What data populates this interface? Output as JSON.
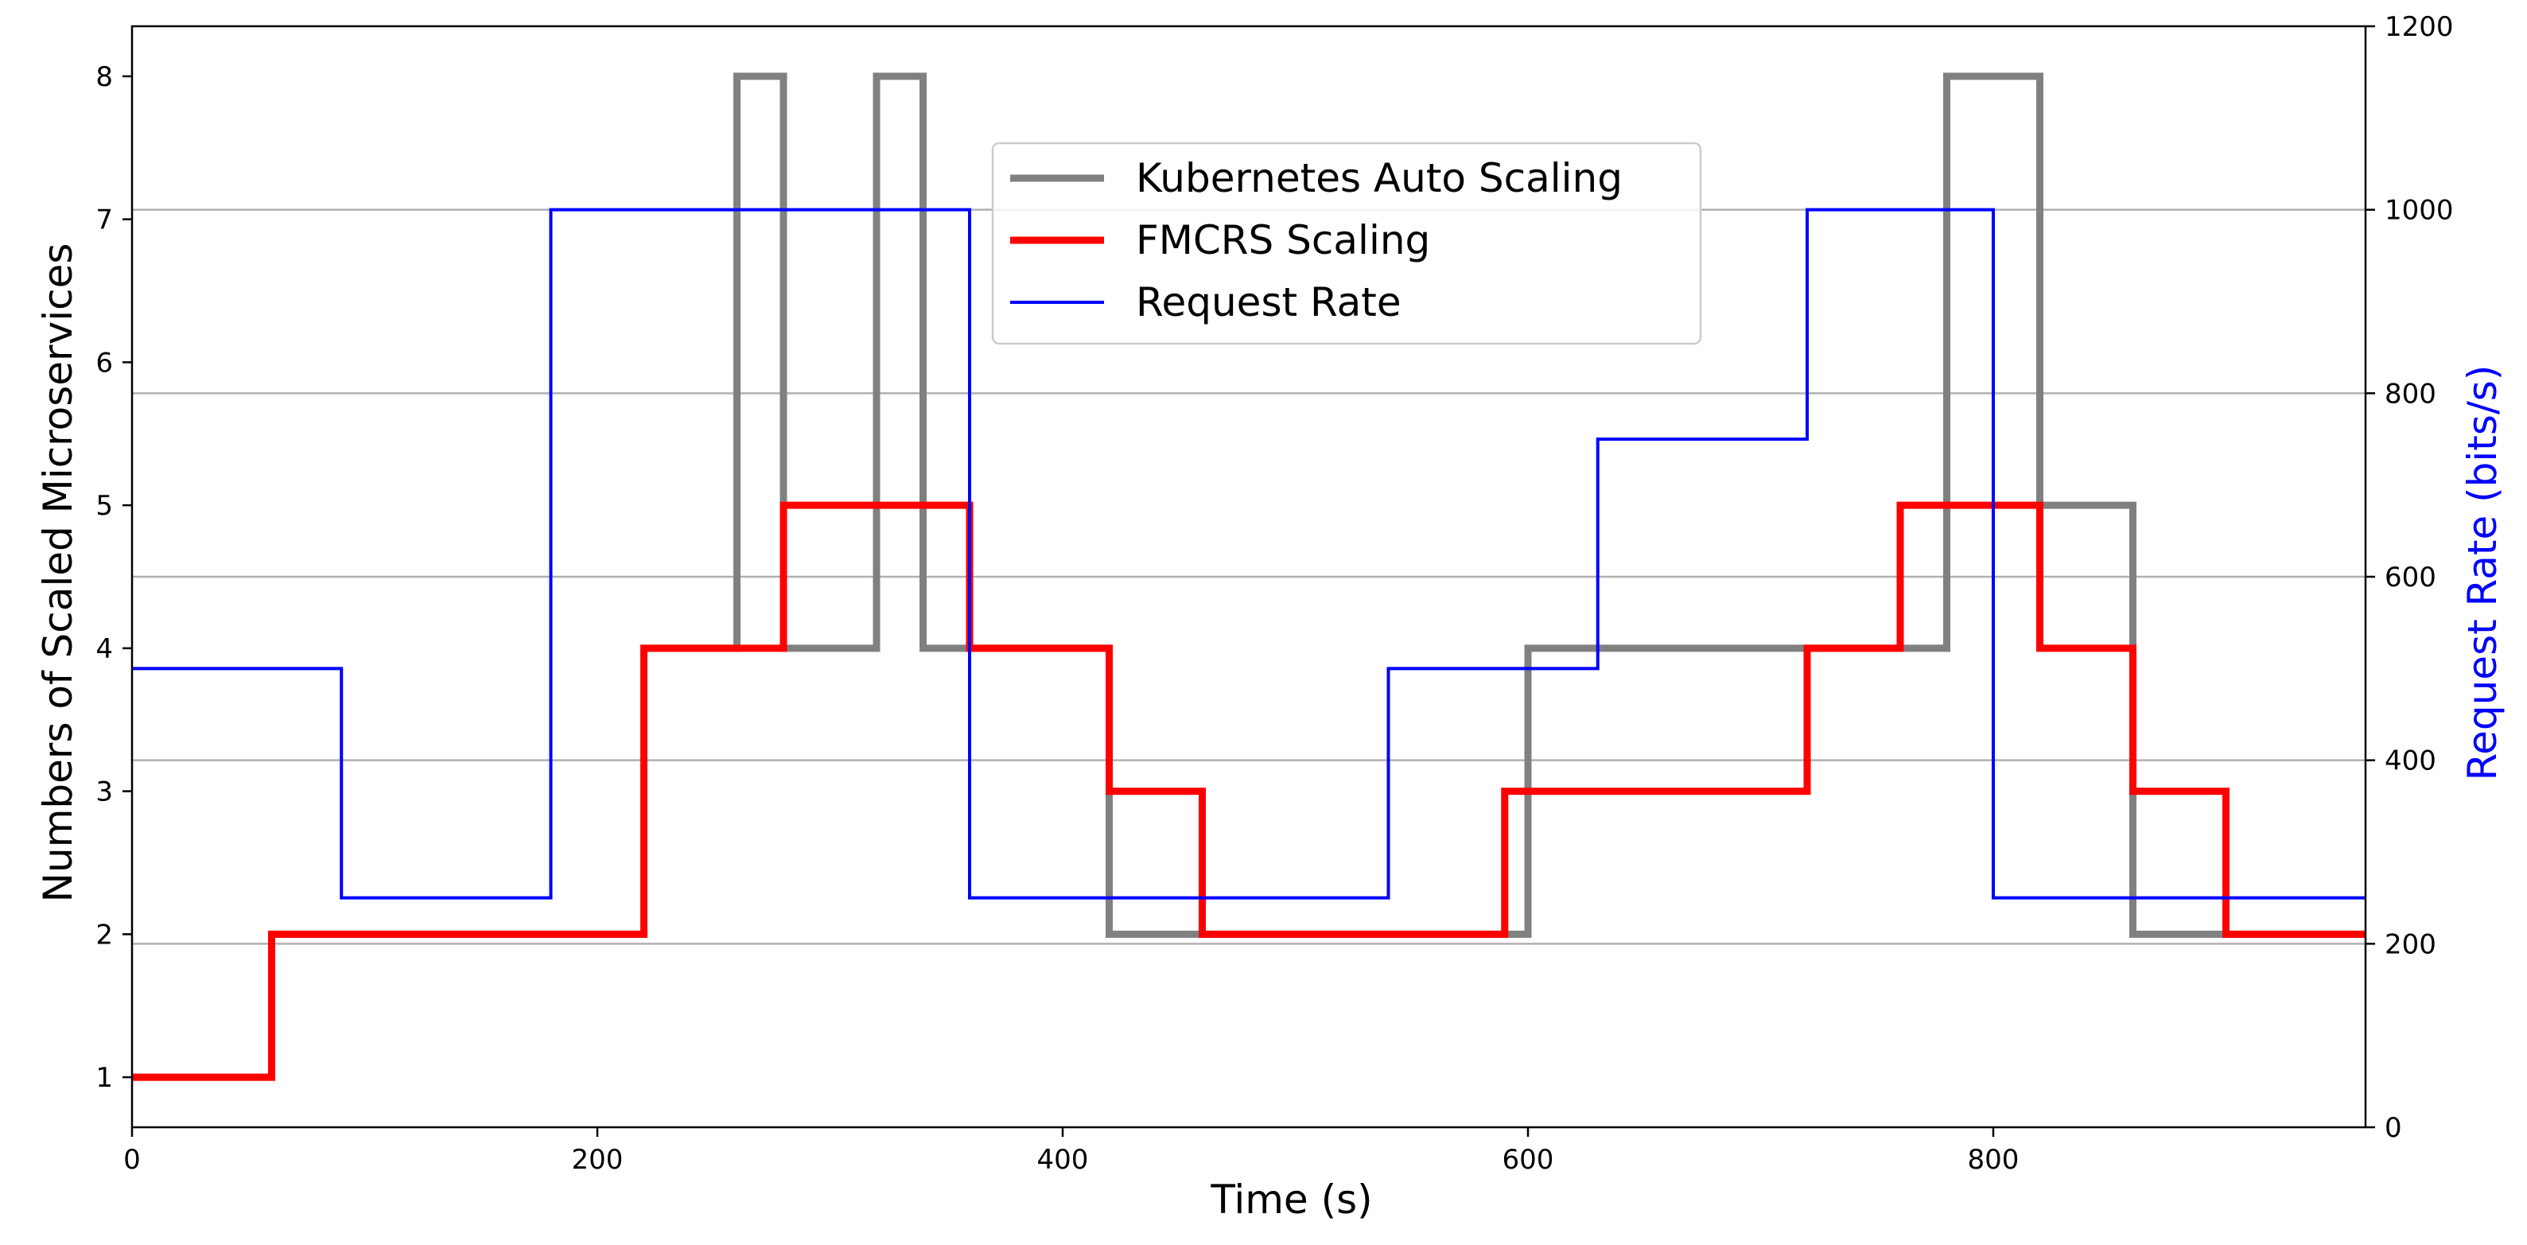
{
  "chart_data": {
    "type": "line",
    "title": "",
    "xlabel": "Time (s)",
    "ylabel": "Numbers of Scaled Microservices",
    "ylabel_right": "Request Rate (bits/s)",
    "xlim": [
      0,
      960
    ],
    "ylim": [
      0.65,
      8.35
    ],
    "ylim_right": [
      0,
      1200
    ],
    "x_ticks": [
      "0",
      "200",
      "400",
      "600",
      "800"
    ],
    "y_ticks": [
      "1",
      "2",
      "3",
      "4",
      "5",
      "6",
      "7",
      "8"
    ],
    "y_ticks_right": [
      "0",
      "200",
      "400",
      "600",
      "800",
      "1000",
      "1200"
    ],
    "grid": "horizontal, right axis",
    "legend_position": "upper-center",
    "series": [
      {
        "name": "Kubernetes Auto Scaling",
        "axis": "left",
        "color": "#808080",
        "step": true,
        "x": [
          0,
          60,
          220,
          260,
          280,
          320,
          340,
          420,
          600,
          780,
          820,
          860,
          960
        ],
        "y": [
          1,
          2,
          4,
          8,
          4,
          8,
          4,
          2,
          4,
          8,
          5,
          2,
          2
        ]
      },
      {
        "name": "FMCRS Scaling",
        "axis": "left",
        "color": "#ff0000",
        "step": true,
        "x": [
          0,
          60,
          220,
          280,
          360,
          420,
          460,
          590,
          720,
          760,
          820,
          860,
          900,
          960
        ],
        "y": [
          1,
          2,
          4,
          5,
          4,
          3,
          2,
          3,
          4,
          5,
          4,
          3,
          2,
          2
        ]
      },
      {
        "name": "Request Rate",
        "axis": "right",
        "color": "#0000ff",
        "step": true,
        "x": [
          0,
          90,
          180,
          360,
          540,
          630,
          720,
          800,
          960
        ],
        "y": [
          500,
          250,
          1000,
          250,
          500,
          750,
          1000,
          250,
          250
        ]
      }
    ]
  }
}
